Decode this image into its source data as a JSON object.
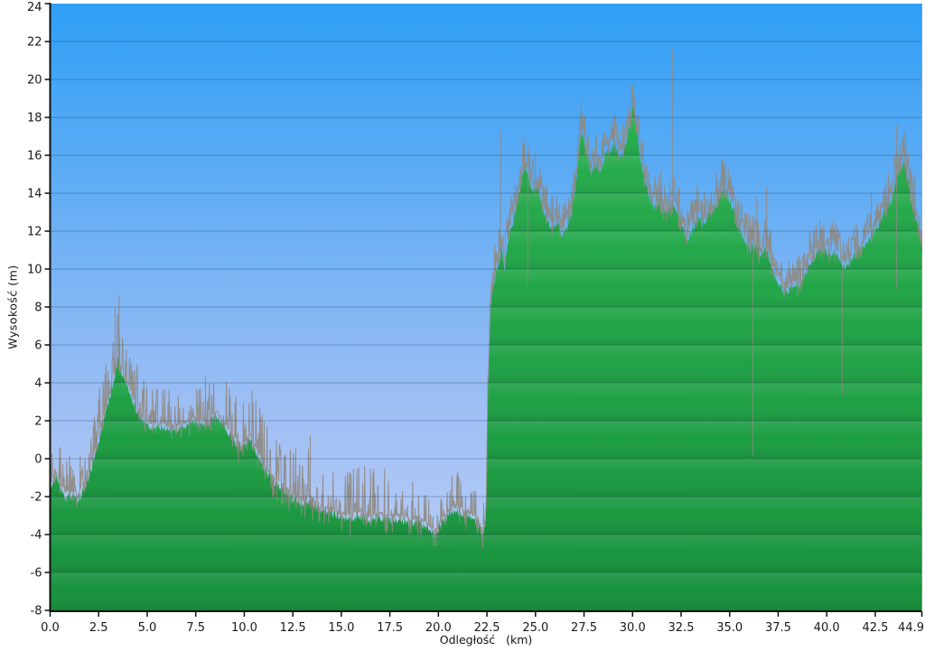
{
  "chart_data": {
    "type": "area",
    "title": "",
    "xlabel": "Odległość   (km)",
    "ylabel": "Wysokość (m)",
    "xlim": [
      0,
      44.9
    ],
    "ylim": [
      -8,
      24
    ],
    "grid": "horizontal",
    "legend": "none",
    "x_ticks": [
      [
        0,
        "0.0"
      ],
      [
        2.5,
        "2.5"
      ],
      [
        5,
        "5.0"
      ],
      [
        7.5,
        "7.5"
      ],
      [
        10,
        "10.0"
      ],
      [
        12.5,
        "12.5"
      ],
      [
        15,
        "15.0"
      ],
      [
        17.5,
        "17.5"
      ],
      [
        20,
        "20.0"
      ],
      [
        22.5,
        "22.5"
      ],
      [
        25,
        "25.0"
      ],
      [
        27.5,
        "27.5"
      ],
      [
        30,
        "30.0"
      ],
      [
        32.5,
        "32.5"
      ],
      [
        35,
        "35.0"
      ],
      [
        37.5,
        "37.5"
      ],
      [
        40,
        "40.0"
      ],
      [
        42.5,
        "42.5"
      ],
      [
        44.9,
        "44.9"
      ]
    ],
    "y_ticks": [
      [
        24,
        "24"
      ],
      [
        22,
        "22"
      ],
      [
        20,
        "20"
      ],
      [
        18,
        "18"
      ],
      [
        16,
        "16"
      ],
      [
        14,
        "14"
      ],
      [
        12,
        "12"
      ],
      [
        10,
        "10"
      ],
      [
        8,
        "8"
      ],
      [
        6,
        "6"
      ],
      [
        4,
        "4"
      ],
      [
        2,
        "2"
      ],
      [
        0,
        "0"
      ],
      [
        -2,
        "-2"
      ],
      [
        -4,
        "-4"
      ],
      [
        -6,
        "-6"
      ],
      [
        -8,
        "-8"
      ]
    ],
    "series": [
      {
        "name": "elevation-profile",
        "base_points": [
          [
            0,
            -1.5
          ],
          [
            0.3,
            -0.9
          ],
          [
            0.5,
            -1.4
          ],
          [
            0.8,
            -2.1
          ],
          [
            1.1,
            -1.9
          ],
          [
            1.4,
            -2.2
          ],
          [
            1.7,
            -1.7
          ],
          [
            1.9,
            -1.2
          ],
          [
            2.1,
            -0.6
          ],
          [
            2.3,
            0.2
          ],
          [
            2.5,
            0.9
          ],
          [
            2.7,
            1.8
          ],
          [
            2.9,
            2.6
          ],
          [
            3.1,
            3.4
          ],
          [
            3.3,
            4.3
          ],
          [
            3.5,
            5.2
          ],
          [
            3.6,
            4.8
          ],
          [
            3.8,
            4.1
          ],
          [
            4.0,
            3.7
          ],
          [
            4.2,
            3.1
          ],
          [
            4.4,
            2.6
          ],
          [
            4.7,
            2.1
          ],
          [
            5.0,
            1.8
          ],
          [
            5.4,
            1.6
          ],
          [
            5.8,
            1.7
          ],
          [
            6.2,
            1.5
          ],
          [
            6.6,
            1.6
          ],
          [
            7.0,
            1.7
          ],
          [
            7.4,
            1.9
          ],
          [
            7.8,
            1.8
          ],
          [
            8.2,
            2.0
          ],
          [
            8.6,
            2.2
          ],
          [
            9.0,
            1.6
          ],
          [
            9.4,
            1.0
          ],
          [
            9.7,
            0.6
          ],
          [
            10.0,
            0.7
          ],
          [
            10.3,
            1.1
          ],
          [
            10.6,
            0.4
          ],
          [
            11.0,
            -0.5
          ],
          [
            11.4,
            -1.1
          ],
          [
            11.8,
            -1.5
          ],
          [
            12.2,
            -1.8
          ],
          [
            12.6,
            -2.1
          ],
          [
            13.0,
            -2.4
          ],
          [
            13.4,
            -2.2
          ],
          [
            13.8,
            -2.6
          ],
          [
            14.2,
            -2.8
          ],
          [
            14.6,
            -2.9
          ],
          [
            15.0,
            -3.1
          ],
          [
            15.5,
            -3.2
          ],
          [
            16.0,
            -3.0
          ],
          [
            16.5,
            -3.3
          ],
          [
            17.0,
            -3.1
          ],
          [
            17.5,
            -3.3
          ],
          [
            18.0,
            -3.2
          ],
          [
            18.5,
            -3.4
          ],
          [
            19.0,
            -3.3
          ],
          [
            19.5,
            -3.7
          ],
          [
            19.8,
            -4.1
          ],
          [
            20.1,
            -3.5
          ],
          [
            20.5,
            -3.0
          ],
          [
            20.9,
            -2.7
          ],
          [
            21.3,
            -2.9
          ],
          [
            21.7,
            -3.1
          ],
          [
            22.0,
            -3.3
          ],
          [
            22.3,
            -4.1
          ],
          [
            22.45,
            -3.0
          ],
          [
            22.55,
            3.5
          ],
          [
            22.7,
            8.2
          ],
          [
            22.9,
            9.6
          ],
          [
            23.1,
            10.3
          ],
          [
            23.25,
            11.2
          ],
          [
            23.4,
            10.0
          ],
          [
            23.6,
            11.6
          ],
          [
            23.9,
            12.8
          ],
          [
            24.2,
            14.2
          ],
          [
            24.45,
            15.6
          ],
          [
            24.7,
            14.6
          ],
          [
            24.9,
            14.1
          ],
          [
            25.1,
            14.4
          ],
          [
            25.35,
            13.2
          ],
          [
            25.6,
            12.6
          ],
          [
            25.85,
            12.2
          ],
          [
            26.1,
            12.5
          ],
          [
            26.35,
            11.7
          ],
          [
            26.6,
            12.1
          ],
          [
            26.85,
            13.0
          ],
          [
            27.1,
            14.6
          ],
          [
            27.35,
            17.4
          ],
          [
            27.6,
            16.2
          ],
          [
            27.85,
            15.0
          ],
          [
            28.1,
            15.6
          ],
          [
            28.35,
            15.1
          ],
          [
            28.6,
            16.1
          ],
          [
            28.85,
            16.3
          ],
          [
            29.1,
            16.6
          ],
          [
            29.35,
            15.9
          ],
          [
            29.6,
            16.4
          ],
          [
            29.85,
            17.6
          ],
          [
            30.0,
            18.6
          ],
          [
            30.2,
            17.6
          ],
          [
            30.4,
            15.8
          ],
          [
            30.6,
            14.8
          ],
          [
            30.85,
            14.0
          ],
          [
            31.1,
            13.2
          ],
          [
            31.35,
            13.6
          ],
          [
            31.6,
            12.9
          ],
          [
            31.85,
            13.1
          ],
          [
            32.1,
            13.4
          ],
          [
            32.35,
            12.7
          ],
          [
            32.6,
            12.1
          ],
          [
            32.85,
            11.5
          ],
          [
            33.1,
            12.1
          ],
          [
            33.35,
            12.7
          ],
          [
            33.6,
            12.3
          ],
          [
            33.85,
            12.8
          ],
          [
            34.1,
            13.1
          ],
          [
            34.35,
            13.5
          ],
          [
            34.6,
            14.2
          ],
          [
            34.85,
            13.9
          ],
          [
            35.1,
            13.3
          ],
          [
            35.35,
            12.7
          ],
          [
            35.6,
            11.9
          ],
          [
            35.85,
            11.3
          ],
          [
            36.1,
            11.1
          ],
          [
            36.35,
            11.3
          ],
          [
            36.6,
            10.6
          ],
          [
            36.85,
            11.2
          ],
          [
            37.1,
            10.3
          ],
          [
            37.35,
            9.6
          ],
          [
            37.6,
            9.1
          ],
          [
            37.85,
            8.7
          ],
          [
            38.1,
            8.9
          ],
          [
            38.35,
            9.2
          ],
          [
            38.6,
            9.0
          ],
          [
            38.85,
            9.6
          ],
          [
            39.1,
            10.2
          ],
          [
            39.35,
            10.7
          ],
          [
            39.6,
            10.9
          ],
          [
            39.85,
            11.0
          ],
          [
            40.1,
            10.7
          ],
          [
            40.35,
            10.9
          ],
          [
            40.6,
            10.6
          ],
          [
            40.85,
            10.1
          ],
          [
            41.1,
            10.2
          ],
          [
            41.35,
            10.6
          ],
          [
            41.6,
            10.9
          ],
          [
            41.85,
            11.1
          ],
          [
            42.1,
            11.4
          ],
          [
            42.35,
            11.8
          ],
          [
            42.6,
            12.2
          ],
          [
            42.85,
            12.7
          ],
          [
            43.1,
            13.3
          ],
          [
            43.35,
            13.6
          ],
          [
            43.6,
            14.8
          ],
          [
            43.8,
            15.3
          ],
          [
            44.0,
            15.6
          ],
          [
            44.15,
            14.9
          ],
          [
            44.35,
            13.7
          ],
          [
            44.55,
            12.9
          ],
          [
            44.75,
            12.1
          ],
          [
            44.9,
            11.4
          ]
        ],
        "noise_regions": [
          [
            0,
            2.0,
            0.3,
            2.2,
            0.5,
            0.1
          ],
          [
            2.0,
            4.5,
            0.33,
            2.8,
            0.5,
            0.08
          ],
          [
            4.5,
            9.0,
            0.3,
            2.2,
            0.6,
            0.1
          ],
          [
            9.0,
            12.5,
            0.3,
            2.8,
            0.9,
            0.15
          ],
          [
            12.5,
            17.5,
            0.26,
            2.9,
            0.9,
            0.15
          ],
          [
            17.5,
            22.4,
            0.24,
            2.2,
            0.8,
            0.12
          ],
          [
            22.4,
            45.0,
            0.6,
            1.7,
            0.5,
            0.15
          ]
        ],
        "spikes": [
          [
            0.5,
            0.6
          ],
          [
            3.35,
            7.9
          ],
          [
            3.55,
            8.6
          ],
          [
            8.0,
            4.3
          ],
          [
            10.4,
            3.6
          ],
          [
            13.4,
            1.2
          ],
          [
            23.2,
            17.3
          ],
          [
            24.45,
            16.9
          ],
          [
            25.0,
            16.2
          ],
          [
            27.35,
            18.8
          ],
          [
            29.05,
            18.1
          ],
          [
            29.95,
            19.7
          ],
          [
            30.1,
            18.9
          ],
          [
            31.45,
            15.2
          ],
          [
            32.05,
            21.6
          ],
          [
            33.3,
            14.4
          ],
          [
            34.65,
            15.8
          ],
          [
            36.4,
            13.8
          ],
          [
            36.9,
            14.3
          ],
          [
            40.45,
            12.4
          ],
          [
            42.3,
            14.0
          ],
          [
            43.05,
            14.6
          ],
          [
            43.6,
            17.6
          ],
          [
            44.0,
            16.4
          ],
          [
            44.55,
            15.0
          ]
        ],
        "dropouts": [
          [
            24.6,
            9.2
          ],
          [
            36.2,
            0.1
          ],
          [
            40.8,
            3.4
          ],
          [
            43.6,
            8.9
          ]
        ]
      }
    ],
    "colors": {
      "sky_top": "#2F9FF5",
      "sky_mid": "#A3C0F4",
      "sky_bottom": "#BCD0F8",
      "green_top": "#2BB252",
      "green_mid": "#1FA245",
      "green_bottom": "#17903C",
      "outline_gray": "#8F8A82",
      "grid": "rgba(25,45,90,0.30)",
      "axis": "#111111",
      "band_light": "rgba(255,255,255,0.10)",
      "band_dark": "rgba(0,0,0,0.08)",
      "background": "#FFFFFF",
      "tick_text": "#1a1a1a"
    }
  }
}
